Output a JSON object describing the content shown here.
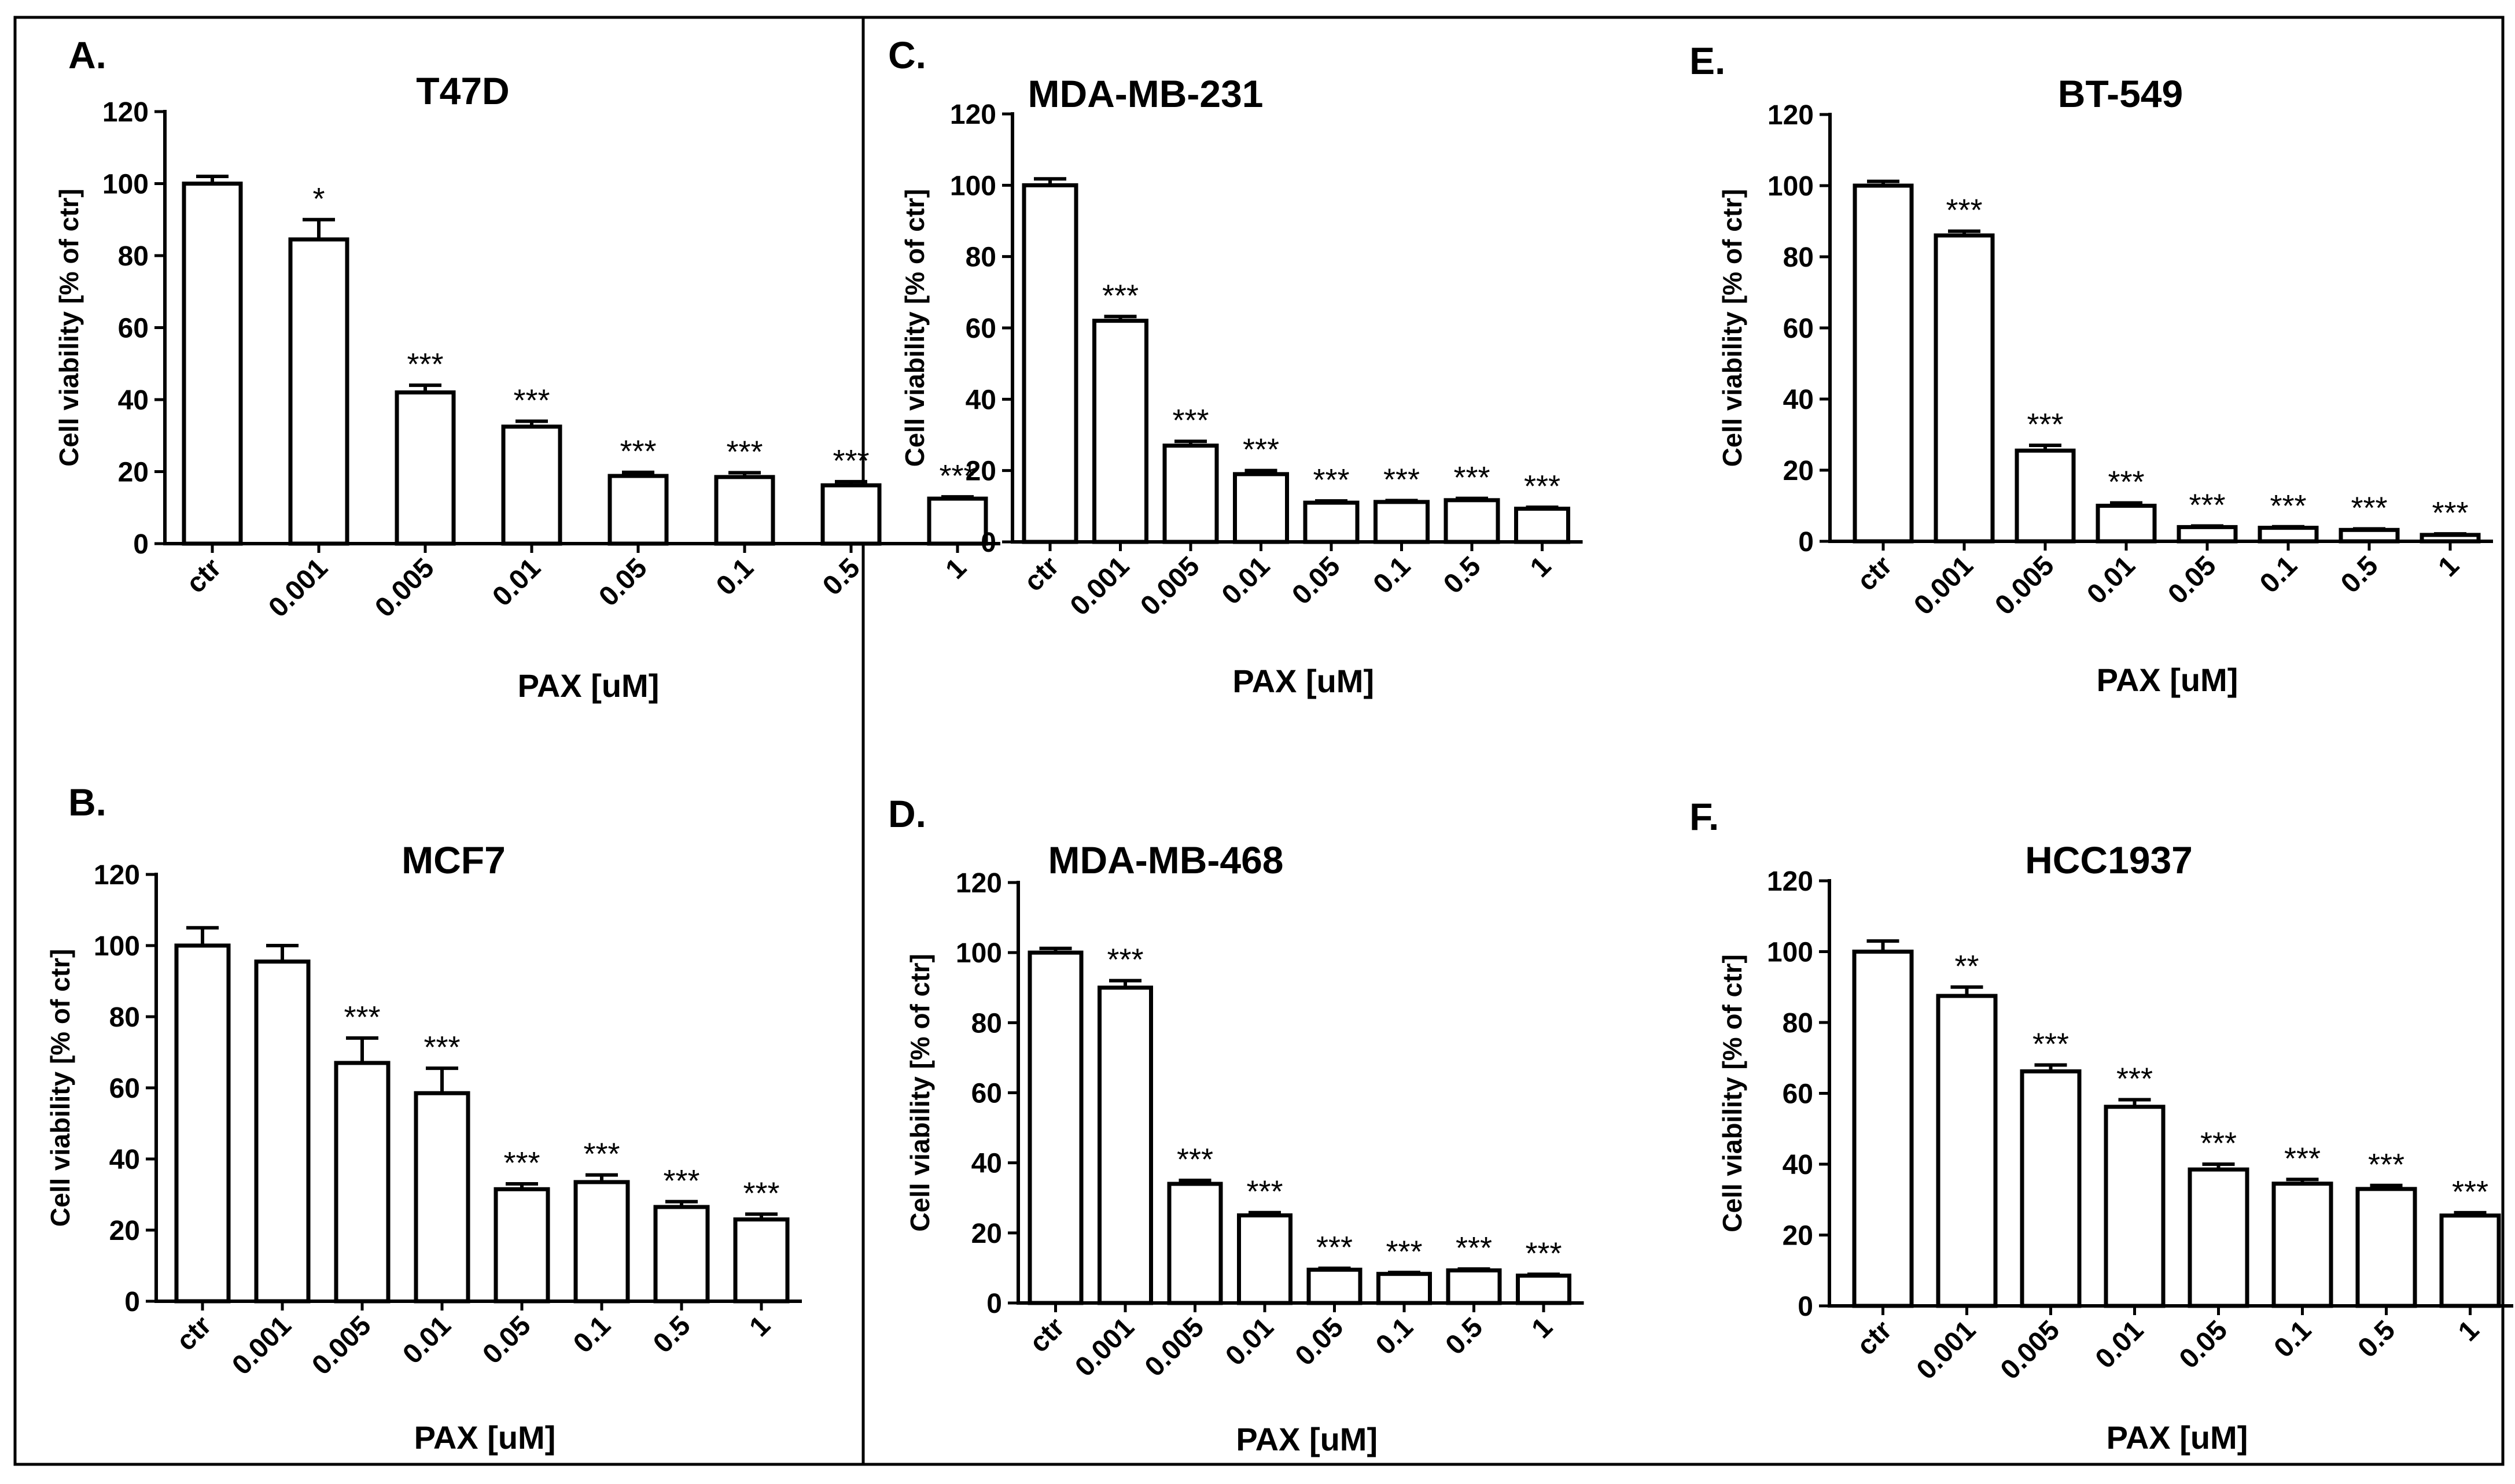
{
  "chart_data": [
    {
      "panel": "A.",
      "type": "bar",
      "title": "T47D",
      "xlabel": "PAX [uM]",
      "ylabel": "Cell viability [% of ctr]",
      "ylim": [
        0,
        120
      ],
      "yticks": [
        "0",
        "20",
        "40",
        "60",
        "80",
        "100",
        "120"
      ],
      "categories": [
        "ctr",
        "0.001",
        "0.005",
        "0.01",
        "0.05",
        "0.1",
        "0.5",
        "1"
      ],
      "values": [
        100,
        84.5,
        42,
        32.5,
        18.8,
        18.5,
        16.2,
        12.5
      ],
      "errors": [
        2,
        5.5,
        2,
        1.5,
        1,
        1.2,
        1,
        0.5
      ],
      "significance": [
        "",
        "*",
        "***",
        "***",
        "***",
        "***",
        "***",
        "***"
      ]
    },
    {
      "panel": "B.",
      "type": "bar",
      "title": "MCF7",
      "xlabel": "PAX [uM]",
      "ylabel": "Cell viability [% of ctr]",
      "ylim": [
        0,
        120
      ],
      "yticks": [
        "0",
        "20",
        "40",
        "60",
        "80",
        "100",
        "120"
      ],
      "categories": [
        "ctr",
        "0.001",
        "0.005",
        "0.01",
        "0.05",
        "0.1",
        "0.5",
        "1"
      ],
      "values": [
        100,
        95.5,
        67,
        58.5,
        31.5,
        33.5,
        26.5,
        23
      ],
      "errors": [
        5,
        4.5,
        7,
        7,
        1.5,
        2,
        1.5,
        1.5
      ],
      "significance": [
        "",
        "",
        "***",
        "***",
        "***",
        "***",
        "***",
        "***"
      ]
    },
    {
      "panel": "C.",
      "type": "bar",
      "title": "MDA-MB-231",
      "xlabel": "PAX [uM]",
      "ylabel": "Cell viability [% of ctr]",
      "ylim": [
        0,
        120
      ],
      "yticks": [
        "0",
        "20",
        "40",
        "60",
        "80",
        "100",
        "120"
      ],
      "categories": [
        "ctr",
        "0.001",
        "0.005",
        "0.01",
        "0.05",
        "0.1",
        "0.5",
        "1"
      ],
      "values": [
        100,
        62,
        27,
        19,
        11,
        11.2,
        11.7,
        9.3
      ],
      "errors": [
        1.8,
        1.2,
        1.2,
        1,
        0.5,
        0.4,
        0.5,
        0.4
      ],
      "significance": [
        "",
        "***",
        "***",
        "***",
        "***",
        "***",
        "***",
        "***"
      ]
    },
    {
      "panel": "D.",
      "type": "bar",
      "title": "MDA-MB-468",
      "xlabel": "PAX [uM]",
      "ylabel": "Cell viability [% of ctr]",
      "ylim": [
        0,
        120
      ],
      "yticks": [
        "0",
        "20",
        "40",
        "60",
        "80",
        "100",
        "120"
      ],
      "categories": [
        "ctr",
        "0.001",
        "0.005",
        "0.01",
        "0.05",
        "0.1",
        "0.5",
        "1"
      ],
      "values": [
        100,
        90,
        34,
        25,
        9.5,
        8.3,
        9.3,
        7.8
      ],
      "errors": [
        1.2,
        2,
        1,
        0.8,
        0.4,
        0.4,
        0.4,
        0.4
      ],
      "significance": [
        "",
        "***",
        "***",
        "***",
        "***",
        "***",
        "***",
        "***"
      ]
    },
    {
      "panel": "E.",
      "type": "bar",
      "title": "BT-549",
      "xlabel": "PAX [uM]",
      "ylabel": "Cell viability [% of ctr]",
      "ylim": [
        0,
        120
      ],
      "yticks": [
        "0",
        "20",
        "40",
        "60",
        "80",
        "100",
        "120"
      ],
      "categories": [
        "ctr",
        "0.001",
        "0.005",
        "0.01",
        "0.05",
        "0.1",
        "0.5",
        "1"
      ],
      "values": [
        100,
        86,
        25.5,
        10,
        4,
        3.8,
        3.2,
        1.8
      ],
      "errors": [
        1.2,
        1.2,
        1.5,
        0.8,
        0.3,
        0.3,
        0.3,
        0.3
      ],
      "significance": [
        "",
        "***",
        "***",
        "***",
        "***",
        "***",
        "***",
        "***"
      ]
    },
    {
      "panel": "F.",
      "type": "bar",
      "title": "HCC1937",
      "xlabel": "PAX [uM]",
      "ylabel": "Cell viability [% of ctr]",
      "ylim": [
        0,
        120
      ],
      "yticks": [
        "0",
        "20",
        "40",
        "60",
        "80",
        "100",
        "120"
      ],
      "categories": [
        "ctr",
        "0.001",
        "0.005",
        "0.01",
        "0.05",
        "0.1",
        "0.5",
        "1"
      ],
      "values": [
        100,
        87.5,
        66.2,
        56.2,
        38.5,
        34.5,
        33,
        25.5
      ],
      "errors": [
        3,
        2.5,
        1.8,
        2,
        1.5,
        1.2,
        1,
        0.8
      ],
      "significance": [
        "",
        "**",
        "***",
        "***",
        "***",
        "***",
        "***",
        "***"
      ]
    }
  ]
}
